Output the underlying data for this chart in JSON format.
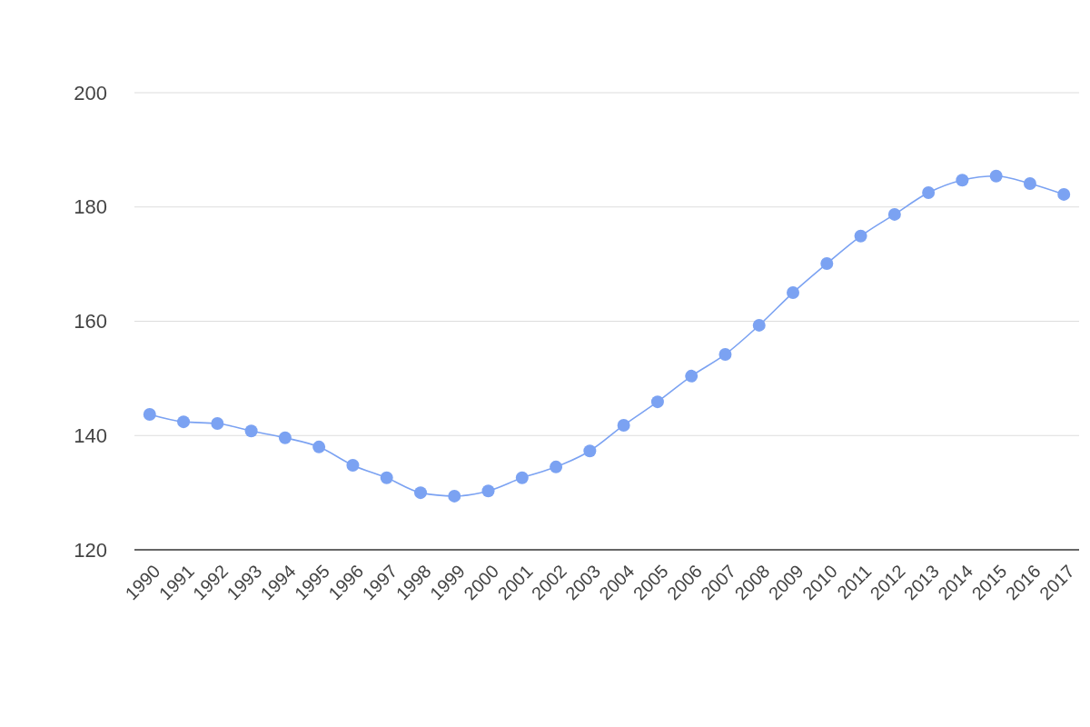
{
  "chart_data": {
    "type": "line",
    "categories": [
      "1990",
      "1991",
      "1992",
      "1993",
      "1994",
      "1995",
      "1996",
      "1997",
      "1998",
      "1999",
      "2000",
      "2001",
      "2002",
      "2003",
      "2004",
      "2005",
      "2006",
      "2007",
      "2008",
      "2009",
      "2010",
      "2011",
      "2012",
      "2013",
      "2014",
      "2015",
      "2016",
      "2017"
    ],
    "series": [
      {
        "color": "#7ba2f2",
        "values": [
          143.7,
          142.4,
          142.1,
          140.8,
          139.6,
          138.0,
          134.8,
          132.6,
          130.0,
          129.4,
          130.3,
          132.6,
          134.5,
          137.3,
          141.8,
          145.9,
          150.4,
          154.2,
          159.3,
          165.0,
          170.1,
          174.9,
          178.7,
          182.5,
          184.7,
          185.4,
          184.1,
          182.2
        ]
      }
    ],
    "ylim": [
      120,
      200
    ],
    "yticks": [
      120,
      140,
      160,
      180,
      200
    ],
    "grid": "y",
    "marker": "circle",
    "line_style": "solid"
  }
}
